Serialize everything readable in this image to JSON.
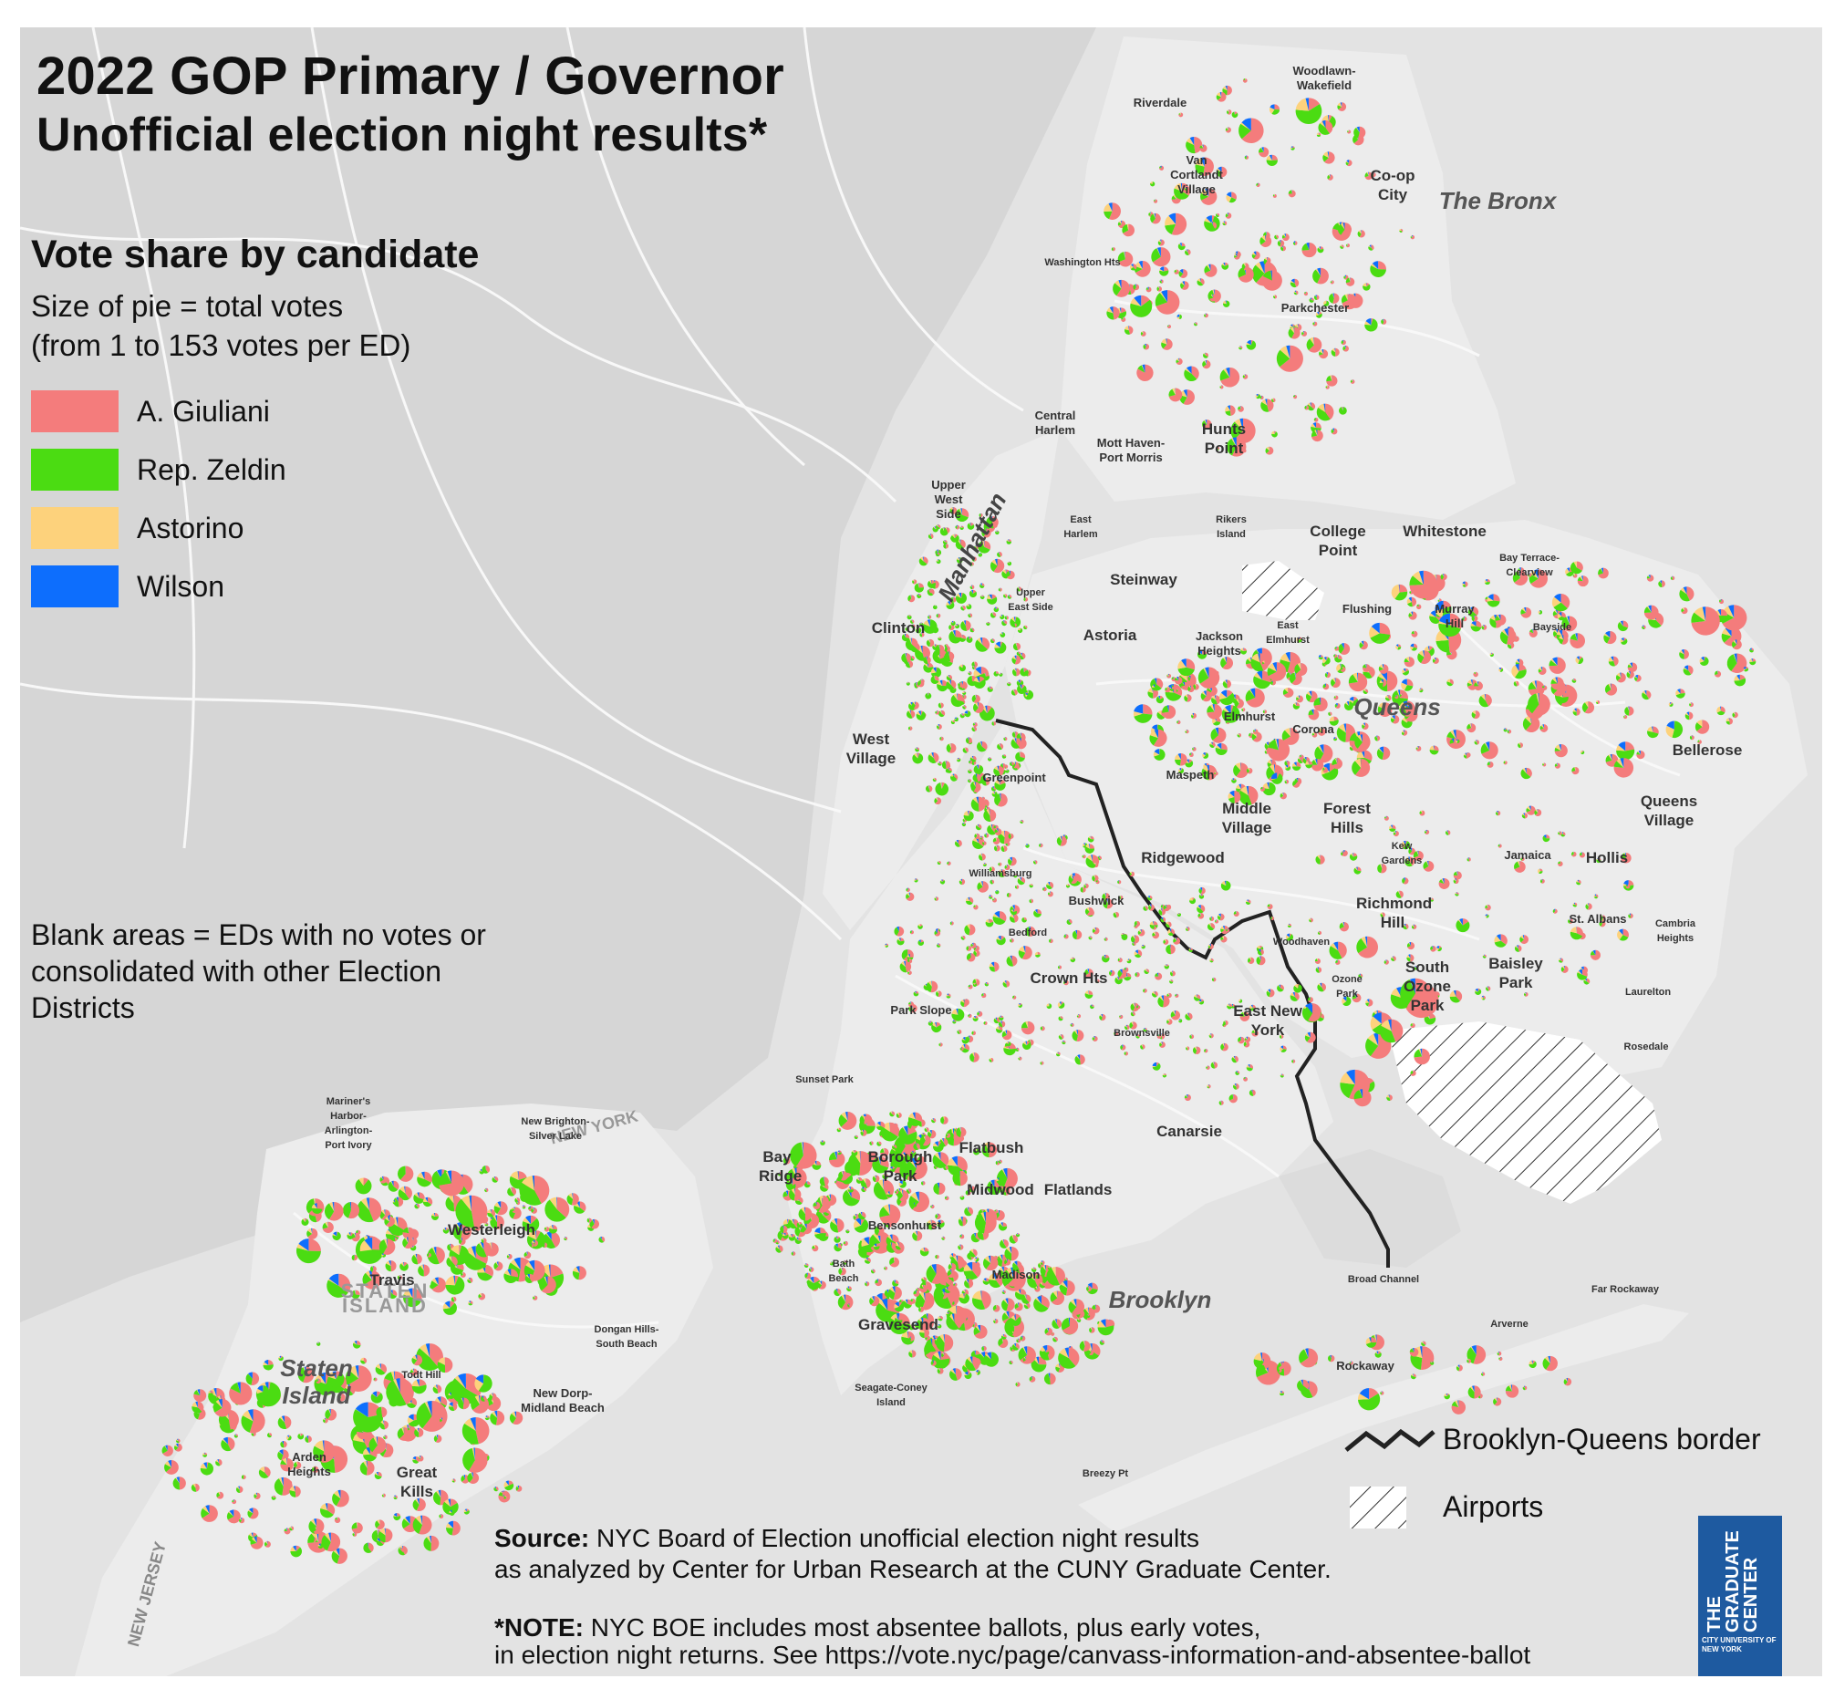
{
  "title": {
    "line1": "2022 GOP Primary / Governor",
    "line2": "Unofficial election night results*"
  },
  "legend": {
    "heading": "Vote share by candidate",
    "size_note_1": "Size of pie = total votes",
    "size_note_2": "(from 1 to 153 votes per ED)",
    "candidates": [
      {
        "name": "A. Giuliani",
        "color": "#f47c7c"
      },
      {
        "name": "Rep. Zeldin",
        "color": "#4bdc12"
      },
      {
        "name": "Astorino",
        "color": "#fdd27c"
      },
      {
        "name": "Wilson",
        "color": "#0d6efd"
      }
    ],
    "blank_note": "Blank areas = EDs with no votes or consolidated with other Election Districts",
    "vote_range": {
      "min": 1,
      "max": 153
    }
  },
  "boroughs": {
    "bronx": "The Bronx",
    "queens": "Queens",
    "manhattan": "Manhattan",
    "brooklyn": "Brooklyn",
    "staten_island": "Staten Island"
  },
  "map_overlay": {
    "staten_watermark": "STATEN ISLAND",
    "new_jersey": "NEW JERSEY",
    "new_york": "NEW YORK"
  },
  "places": [
    "Woodlawn-Wakefield",
    "Riverdale",
    "Van Cortlandt Village",
    "Co-op City",
    "Washington Hts",
    "Parkchester",
    "Central Harlem",
    "Mott Haven-Port Morris",
    "Hunts Point",
    "Upper West Side",
    "East Harlem",
    "Rikers Island",
    "College Point",
    "Whitestone",
    "Bay Terrace-Clearview",
    "Steinway",
    "Upper East Side",
    "Clinton",
    "Astoria",
    "Jackson Heights",
    "East Elmhurst",
    "Flushing",
    "Murray Hill",
    "Bayside",
    "Elmhurst",
    "Corona",
    "West Village",
    "Greenpoint",
    "Maspeth",
    "Middle Village",
    "Forest Hills",
    "Bellerose",
    "Queens Village",
    "Kew Gardens",
    "Ridgewood",
    "Jamaica",
    "Hollis",
    "Williamsburg",
    "Bushwick",
    "Richmond Hill",
    "Bedford",
    "Woodhaven",
    "St. Albans",
    "Cambria Heights",
    "Crown Hts",
    "Ozone Park",
    "South Ozone Park",
    "Baisley Park",
    "Laurelton",
    "Park Slope",
    "East New York",
    "Brownsville",
    "Rosedale",
    "Sunset Park",
    "Canarsie",
    "Mariner's Harbor-Arlington-Port Ivory",
    "New Brighton-Silver Lake",
    "Bay Ridge",
    "Borough Park",
    "Flatbush",
    "Midwood",
    "Flatlands",
    "Westerleigh",
    "Bensonhurst",
    "Bath Beach",
    "Madison",
    "Travis",
    "Broad Channel",
    "Far Rockaway",
    "Dongan Hills-South Beach",
    "Gravesend",
    "Arverne",
    "Todt Hill",
    "Rockaway",
    "New Dorp-Midland Beach",
    "Seagate-Coney Island",
    "Arden Heights",
    "Great Kills",
    "Breezy Pt"
  ],
  "key": {
    "border_label": "Brooklyn-Queens border",
    "airports_label": "Airports"
  },
  "source": {
    "label": "Source:",
    "text_1": "NYC Board of Election unofficial election night results",
    "text_2": "as analyzed by Center for Urban Research at the CUNY Graduate Center."
  },
  "note": {
    "label": "*NOTE:",
    "text_1": "NYC BOE includes most absentee ballots, plus early votes,",
    "text_2": "in election night returns. See https://vote.nyc/page/canvass-information-and-absentee-ballot"
  },
  "logo": {
    "line1": "THE",
    "line2": "GRADUATE",
    "line3": "CENTER",
    "sub": "CITY UNIVERSITY OF NEW YORK"
  }
}
